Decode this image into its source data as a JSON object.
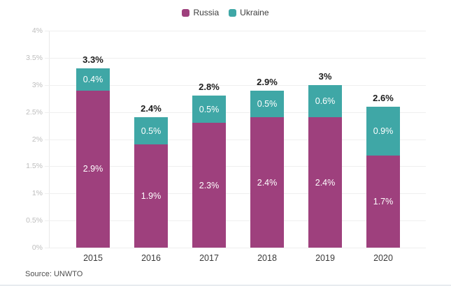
{
  "chart_data": {
    "type": "bar",
    "stacked": true,
    "categories": [
      "2015",
      "2016",
      "2017",
      "2018",
      "2019",
      "2020"
    ],
    "series": [
      {
        "name": "Russia",
        "color": "#9e407d",
        "values": [
          2.9,
          1.9,
          2.3,
          2.4,
          2.4,
          1.7
        ],
        "labels": [
          "2.9%",
          "1.9%",
          "2.3%",
          "2.4%",
          "2.4%",
          "1.7%"
        ]
      },
      {
        "name": "Ukraine",
        "color": "#3fa7a6",
        "values": [
          0.4,
          0.5,
          0.5,
          0.5,
          0.6,
          0.9
        ],
        "labels": [
          "0.4%",
          "0.5%",
          "0.5%",
          "0.5%",
          "0.6%",
          "0.9%"
        ]
      }
    ],
    "totals": [
      "3.3%",
      "2.4%",
      "2.8%",
      "2.9%",
      "3%",
      "2.6%"
    ],
    "y_ticks": [
      "0%",
      "0.5%",
      "1%",
      "1.5%",
      "2%",
      "2.5%",
      "3%",
      "3.5%",
      "4%"
    ],
    "ylim": [
      0,
      4
    ],
    "grid": true,
    "legend_position": "top",
    "title": "",
    "xlabel": "",
    "ylabel": ""
  },
  "legend": {
    "items": [
      {
        "label": "Russia",
        "color": "#9e407d"
      },
      {
        "label": "Ukraine",
        "color": "#3fa7a6"
      }
    ]
  },
  "footer": {
    "source_label": "Source: UNWTO"
  },
  "colors": {
    "grid": "#efefef",
    "axis_line": "#e9e9e9",
    "ytick_text": "#bdbdbd",
    "xtick_text": "#3a3a3a",
    "total_text": "#1c1c1c",
    "segment_text": "#ffffff"
  }
}
